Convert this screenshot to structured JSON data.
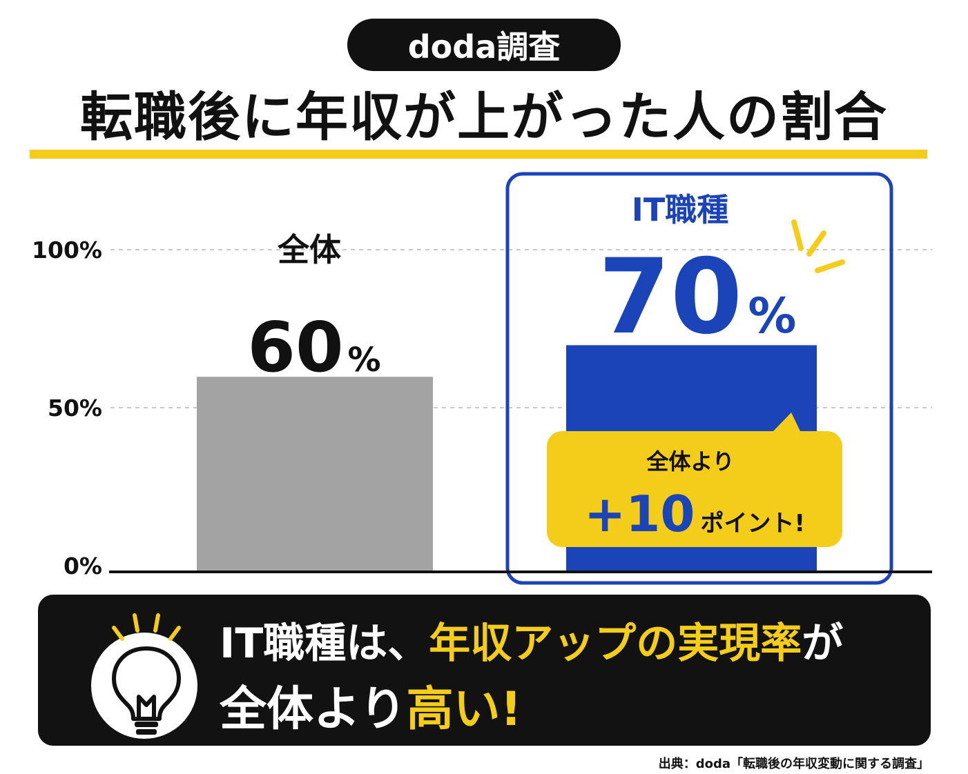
{
  "header": {
    "badge": "doda調査",
    "title": "転職後に年収が上がった人の割合"
  },
  "chart_data": {
    "type": "bar",
    "categories": [
      "全体",
      "IT職種"
    ],
    "values": [
      60,
      70
    ],
    "value_labels": [
      "60",
      "70"
    ],
    "value_unit": "%",
    "yticks": [
      "100%",
      "50%",
      "0%"
    ],
    "ylim": [
      0,
      100
    ],
    "grid": true,
    "colors": [
      "#a3a3a3",
      "#1a44b8"
    ],
    "highlight_category": "IT職種"
  },
  "callout": {
    "line1": "全体より",
    "value": "+10",
    "suffix": "ポイント!"
  },
  "summary": {
    "line1_pre": "IT職種は、",
    "line1_highlight": "年収アップの実現率",
    "line1_post": "が",
    "line2_pre": "全体より",
    "line2_highlight": "高い!"
  },
  "source": "出典：doda「転職後の年収変動に関する調査」",
  "colors": {
    "accent_yellow": "#f4cc1a",
    "accent_blue": "#1a44b8",
    "gray_bar": "#a3a3a3",
    "dark": "#111111"
  },
  "icons": [
    "lightbulb-icon",
    "sparkle-icon"
  ]
}
